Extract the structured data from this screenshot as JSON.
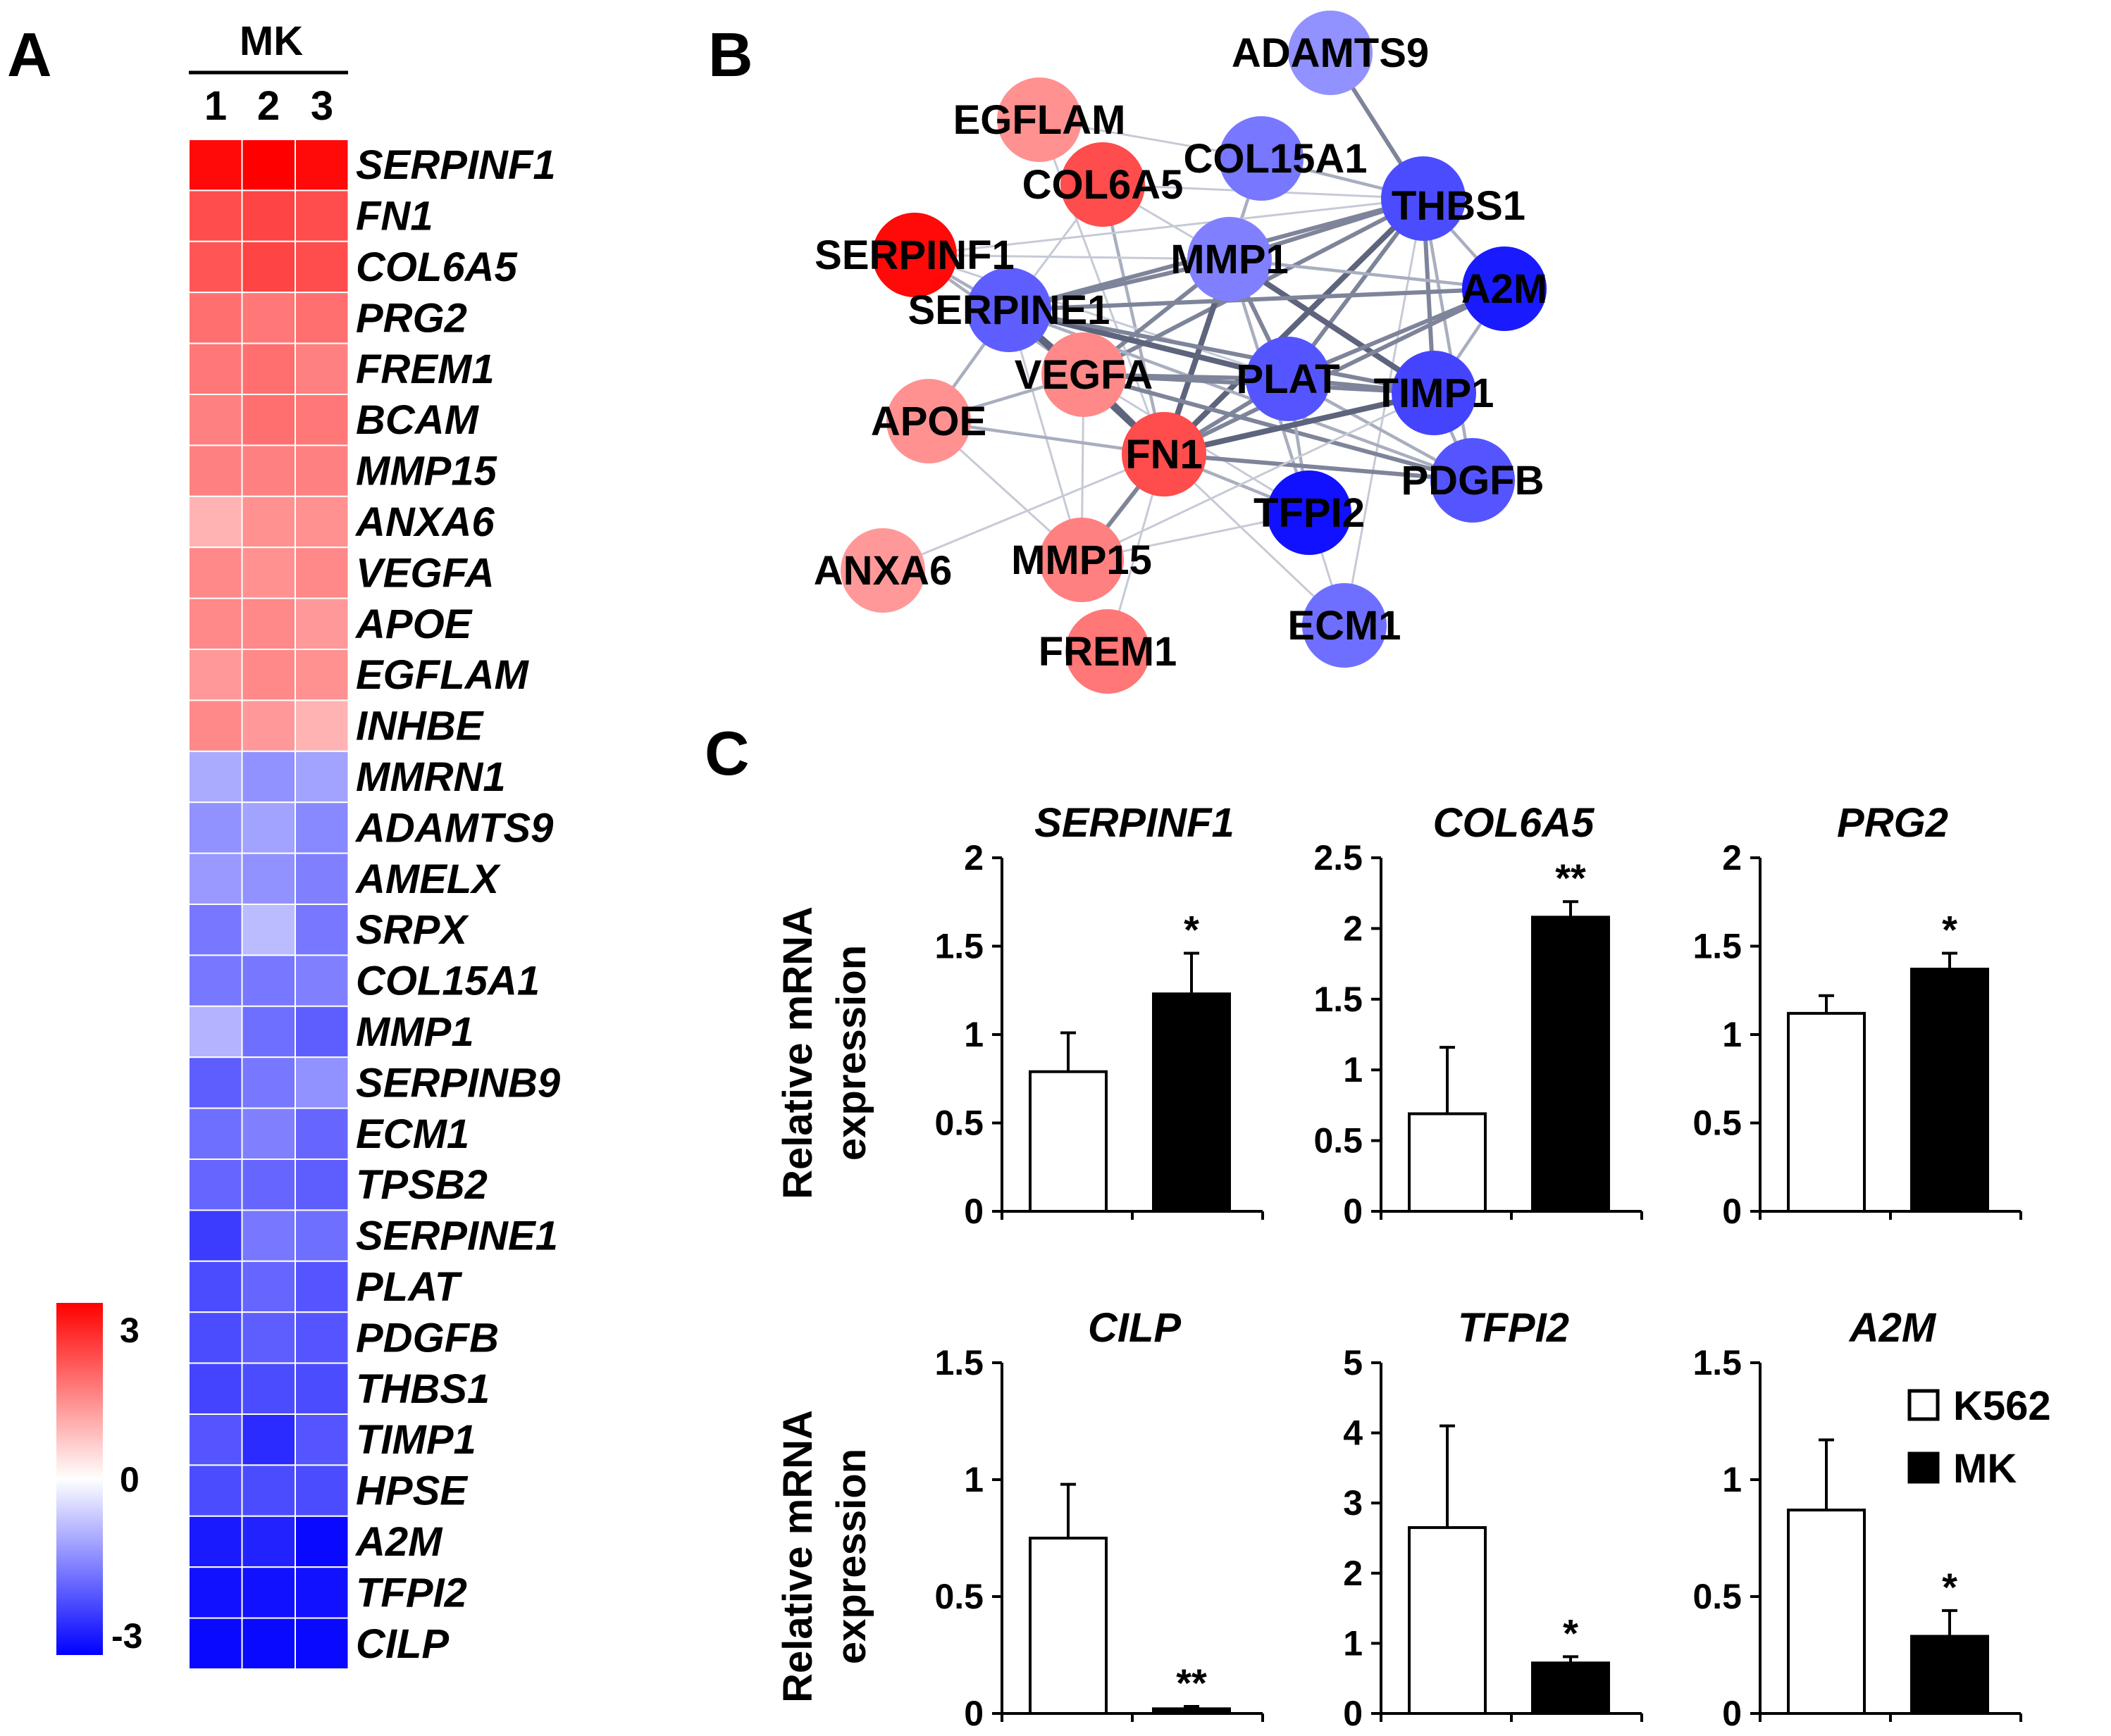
{
  "panels": {
    "a": "A",
    "b": "B",
    "c": "C"
  },
  "heatmap": {
    "group_label": "MK",
    "columns": [
      "1",
      "2",
      "3"
    ],
    "scale": {
      "max_label": "3",
      "mid_label": "0",
      "min_label": "-3",
      "max": 3,
      "min": -3
    },
    "colors": {
      "high": "#ff0000",
      "mid": "#ffffff",
      "low": "#0000ff"
    },
    "genes": [
      "SERPINF1",
      "FN1",
      "COL6A5",
      "PRG2",
      "FREM1",
      "BCAM",
      "MMP15",
      "ANXA6",
      "VEGFA",
      "APOE",
      "EGFLAM",
      "INHBE",
      "MMRN1",
      "ADAMTS9",
      "AMELX",
      "SRPX",
      "COL15A1",
      "MMP1",
      "SERPINB9",
      "ECM1",
      "TPSB2",
      "SERPINE1",
      "PLAT",
      "PDGFB",
      "THBS1",
      "TIMP1",
      "HPSE",
      "A2M",
      "TFPI2",
      "CILP"
    ],
    "values": [
      [
        2.9,
        3.0,
        2.9
      ],
      [
        2.1,
        2.2,
        2.1
      ],
      [
        2.0,
        2.2,
        2.1
      ],
      [
        1.7,
        1.6,
        1.7
      ],
      [
        1.6,
        1.7,
        1.5
      ],
      [
        1.5,
        1.7,
        1.6
      ],
      [
        1.5,
        1.5,
        1.5
      ],
      [
        0.9,
        1.3,
        1.3
      ],
      [
        1.4,
        1.3,
        1.4
      ],
      [
        1.4,
        1.4,
        1.2
      ],
      [
        1.2,
        1.4,
        1.3
      ],
      [
        1.4,
        1.2,
        0.9
      ],
      [
        -1.0,
        -1.3,
        -1.1
      ],
      [
        -1.3,
        -1.1,
        -1.4
      ],
      [
        -1.2,
        -1.3,
        -1.5
      ],
      [
        -1.6,
        -0.8,
        -1.6
      ],
      [
        -1.6,
        -1.6,
        -1.5
      ],
      [
        -0.9,
        -1.7,
        -1.9
      ],
      [
        -1.9,
        -1.6,
        -1.3
      ],
      [
        -1.7,
        -1.5,
        -1.8
      ],
      [
        -1.8,
        -1.8,
        -1.9
      ],
      [
        -2.3,
        -1.6,
        -1.7
      ],
      [
        -2.1,
        -1.8,
        -2.0
      ],
      [
        -2.1,
        -1.9,
        -2.0
      ],
      [
        -2.2,
        -2.1,
        -2.1
      ],
      [
        -2.0,
        -2.5,
        -2.0
      ],
      [
        -2.1,
        -2.1,
        -2.1
      ],
      [
        -2.7,
        -2.6,
        -2.9
      ],
      [
        -2.8,
        -2.8,
        -2.8
      ],
      [
        -2.9,
        -2.9,
        -2.9
      ]
    ]
  },
  "network": {
    "nodes": [
      {
        "id": "ADAMTS9",
        "label": "ADAMTS9",
        "value": -1.3
      },
      {
        "id": "EGFLAM",
        "label": "EGFLAM",
        "value": 1.3
      },
      {
        "id": "COL15A1",
        "label": "COL15A1",
        "value": -1.6
      },
      {
        "id": "THBS1",
        "label": "THBS1",
        "value": -2.1
      },
      {
        "id": "COL6A5",
        "label": "COL6A5",
        "value": 2.1
      },
      {
        "id": "SERPINF1",
        "label": "SERPINF1",
        "value": 2.9
      },
      {
        "id": "MMP1",
        "label": "MMP1",
        "value": -1.5
      },
      {
        "id": "A2M",
        "label": "A2M",
        "value": -2.7
      },
      {
        "id": "SERPINE1",
        "label": "SERPINE1",
        "value": -1.9
      },
      {
        "id": "VEGFA",
        "label": "VEGFA",
        "value": 1.4
      },
      {
        "id": "PLAT",
        "label": "PLAT",
        "value": -2.0
      },
      {
        "id": "TIMP1",
        "label": "TIMP1",
        "value": -2.2
      },
      {
        "id": "APOE",
        "label": "APOE",
        "value": 1.3
      },
      {
        "id": "FN1",
        "label": "FN1",
        "value": 2.1
      },
      {
        "id": "PDGFB",
        "label": "PDGFB",
        "value": -2.0
      },
      {
        "id": "TFPI2",
        "label": "TFPI2",
        "value": -2.8
      },
      {
        "id": "ANXA6",
        "label": "ANXA6",
        "value": 1.2
      },
      {
        "id": "MMP15",
        "label": "MMP15",
        "value": 1.5
      },
      {
        "id": "ECM1",
        "label": "ECM1",
        "value": -1.7
      },
      {
        "id": "FREM1",
        "label": "FREM1",
        "value": 1.6
      }
    ],
    "edges": [
      [
        "ADAMTS9",
        "THBS1",
        3
      ],
      [
        "EGFLAM",
        "COL15A1",
        1
      ],
      [
        "EGFLAM",
        "FN1",
        1
      ],
      [
        "COL15A1",
        "THBS1",
        2
      ],
      [
        "COL15A1",
        "MMP1",
        1
      ],
      [
        "COL15A1",
        "FN1",
        2
      ],
      [
        "COL6A5",
        "THBS1",
        1
      ],
      [
        "COL6A5",
        "MMP1",
        1
      ],
      [
        "COL6A5",
        "FN1",
        2
      ],
      [
        "COL6A5",
        "SERPINE1",
        1
      ],
      [
        "SERPINF1",
        "SERPINE1",
        2
      ],
      [
        "SERPINF1",
        "MMP1",
        1
      ],
      [
        "SERPINF1",
        "VEGFA",
        2
      ],
      [
        "SERPINF1",
        "PLAT",
        1
      ],
      [
        "SERPINF1",
        "THBS1",
        1
      ],
      [
        "THBS1",
        "MMP1",
        3
      ],
      [
        "THBS1",
        "A2M",
        2
      ],
      [
        "THBS1",
        "SERPINE1",
        3
      ],
      [
        "THBS1",
        "VEGFA",
        3
      ],
      [
        "THBS1",
        "PLAT",
        3
      ],
      [
        "THBS1",
        "TIMP1",
        3
      ],
      [
        "THBS1",
        "FN1",
        4
      ],
      [
        "THBS1",
        "PDGFB",
        2
      ],
      [
        "THBS1",
        "ECM1",
        1
      ],
      [
        "MMP1",
        "SERPINE1",
        3
      ],
      [
        "MMP1",
        "PLAT",
        3
      ],
      [
        "MMP1",
        "TIMP1",
        4
      ],
      [
        "MMP1",
        "FN1",
        4
      ],
      [
        "MMP1",
        "A2M",
        2
      ],
      [
        "MMP1",
        "VEGFA",
        3
      ],
      [
        "MMP1",
        "TFPI2",
        2
      ],
      [
        "SERPINE1",
        "VEGFA",
        4
      ],
      [
        "SERPINE1",
        "PLAT",
        4
      ],
      [
        "SERPINE1",
        "TIMP1",
        3
      ],
      [
        "SERPINE1",
        "FN1",
        4
      ],
      [
        "SERPINE1",
        "APOE",
        2
      ],
      [
        "SERPINE1",
        "A2M",
        3
      ],
      [
        "SERPINE1",
        "PDGFB",
        2
      ],
      [
        "SERPINE1",
        "MMP15",
        1
      ],
      [
        "VEGFA",
        "FN1",
        4
      ],
      [
        "VEGFA",
        "PLAT",
        3
      ],
      [
        "VEGFA",
        "TIMP1",
        3
      ],
      [
        "VEGFA",
        "APOE",
        2
      ],
      [
        "VEGFA",
        "PDGFB",
        3
      ],
      [
        "VEGFA",
        "TFPI2",
        1
      ],
      [
        "VEGFA",
        "MMP15",
        1
      ],
      [
        "PLAT",
        "TIMP1",
        3
      ],
      [
        "PLAT",
        "A2M",
        3
      ],
      [
        "PLAT",
        "FN1",
        3
      ],
      [
        "PLAT",
        "TFPI2",
        2
      ],
      [
        "PLAT",
        "PDGFB",
        2
      ],
      [
        "TIMP1",
        "FN1",
        4
      ],
      [
        "TIMP1",
        "A2M",
        2
      ],
      [
        "TIMP1",
        "PDGFB",
        2
      ],
      [
        "FN1",
        "A2M",
        3
      ],
      [
        "FN1",
        "APOE",
        2
      ],
      [
        "FN1",
        "PDGFB",
        3
      ],
      [
        "FN1",
        "TFPI2",
        2
      ],
      [
        "FN1",
        "ANXA6",
        1
      ],
      [
        "FN1",
        "MMP15",
        3
      ],
      [
        "FN1",
        "FREM1",
        1
      ],
      [
        "FN1",
        "ECM1",
        1
      ],
      [
        "MMP15",
        "TFPI2",
        1
      ],
      [
        "MMP15",
        "TIMP1",
        1
      ],
      [
        "APOE",
        "MMP15",
        1
      ],
      [
        "ECM1",
        "TFPI2",
        1
      ]
    ]
  },
  "bar_charts": {
    "ylabel_line1": "Relative mRNA",
    "ylabel_line2": "expression",
    "legend": {
      "k562": "K562",
      "mk": "MK"
    },
    "bar_colors": {
      "k562": "#ffffff",
      "mk": "#000000"
    }
  },
  "chart_data": [
    {
      "type": "bar",
      "title": "SERPINF1",
      "categories": [
        "K562",
        "MK"
      ],
      "values": [
        0.79,
        1.23
      ],
      "errors": [
        0.22,
        0.23
      ],
      "significance": [
        "",
        "*"
      ],
      "ylim": [
        0,
        2
      ],
      "yticks": [
        0,
        0.5,
        1,
        1.5,
        2
      ],
      "ytick_labels": [
        "0",
        "0.5",
        "1",
        "1.5",
        "2"
      ],
      "ylabel": "Relative mRNA expression"
    },
    {
      "type": "bar",
      "title": "COL6A5",
      "categories": [
        "K562",
        "MK"
      ],
      "values": [
        0.69,
        2.08
      ],
      "errors": [
        0.47,
        0.11
      ],
      "significance": [
        "",
        "**"
      ],
      "ylim": [
        0,
        2.5
      ],
      "yticks": [
        0,
        0.5,
        1,
        1.5,
        2,
        2.5
      ],
      "ytick_labels": [
        "0",
        "0.5",
        "1",
        "1.5",
        "2",
        "2.5"
      ],
      "ylabel": ""
    },
    {
      "type": "bar",
      "title": "PRG2",
      "categories": [
        "K562",
        "MK"
      ],
      "values": [
        1.12,
        1.37
      ],
      "errors": [
        0.1,
        0.09
      ],
      "significance": [
        "",
        "*"
      ],
      "ylim": [
        0,
        2
      ],
      "yticks": [
        0,
        0.5,
        1,
        1.5,
        2
      ],
      "ytick_labels": [
        "0",
        "0.5",
        "1",
        "1.5",
        "2"
      ],
      "ylabel": ""
    },
    {
      "type": "bar",
      "title": "CILP",
      "categories": [
        "K562",
        "MK"
      ],
      "values": [
        0.75,
        0.02
      ],
      "errors": [
        0.23,
        0.01
      ],
      "significance": [
        "",
        "**"
      ],
      "ylim": [
        0,
        1.5
      ],
      "yticks": [
        0,
        0.5,
        1,
        1.5
      ],
      "ytick_labels": [
        "0",
        "0.5",
        "1",
        "1.5"
      ],
      "ylabel": "Relative mRNA expression"
    },
    {
      "type": "bar",
      "title": "TFPI2",
      "categories": [
        "K562",
        "MK"
      ],
      "values": [
        2.65,
        0.72
      ],
      "errors": [
        1.45,
        0.09
      ],
      "significance": [
        "",
        "*"
      ],
      "ylim": [
        0,
        5
      ],
      "yticks": [
        0,
        1,
        2,
        3,
        4,
        5
      ],
      "ytick_labels": [
        "0",
        "1",
        "2",
        "3",
        "4",
        "5"
      ],
      "ylabel": ""
    },
    {
      "type": "bar",
      "title": "A2M",
      "categories": [
        "K562",
        "MK"
      ],
      "values": [
        0.87,
        0.33
      ],
      "errors": [
        0.3,
        0.11
      ],
      "significance": [
        "",
        "*"
      ],
      "ylim": [
        0,
        1.5
      ],
      "yticks": [
        0,
        0.5,
        1,
        1.5
      ],
      "ytick_labels": [
        "0",
        "0.5",
        "1",
        "1.5"
      ],
      "ylabel": ""
    }
  ]
}
